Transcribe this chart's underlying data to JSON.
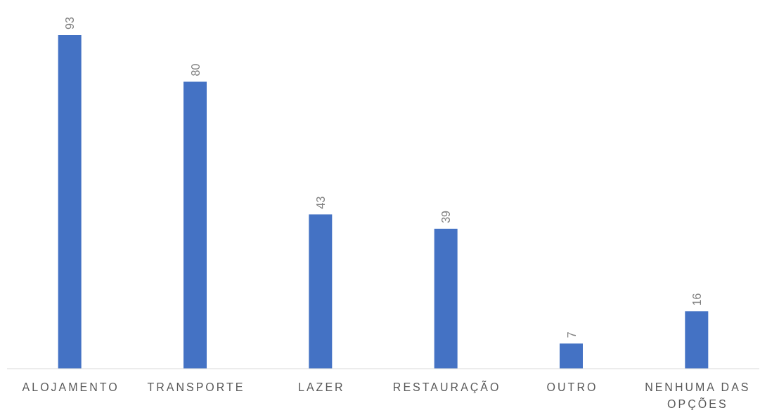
{
  "chart_data": {
    "type": "bar",
    "categories": [
      "ALOJAMENTO",
      "TRANSPORTE",
      "LAZER",
      "RESTAURAÇÃO",
      "OUTRO",
      "NENHUMA DAS OPÇÕES"
    ],
    "values": [
      93,
      80,
      43,
      39,
      7,
      16
    ],
    "color": "#4472c4",
    "data_labels": true
  }
}
